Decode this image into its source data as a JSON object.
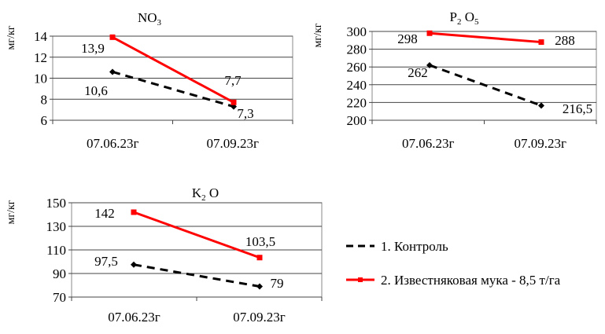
{
  "chart_data": [
    {
      "type": "line",
      "title": "NO3",
      "title_main": "NO",
      "title_sub": "3",
      "ylabel": "мг/кг",
      "categories": [
        "07.06.23г",
        "07.09.23г"
      ],
      "ylim": [
        6,
        14
      ],
      "yticks": [
        6,
        8,
        10,
        12,
        14
      ],
      "grid": true,
      "series": [
        {
          "name": "1. Контроль",
          "values": [
            10.6,
            7.3
          ],
          "labels": [
            "10,6",
            "7,3"
          ]
        },
        {
          "name": "2. Известняковая мука - 8,5 т/га",
          "values": [
            13.9,
            7.7
          ],
          "labels": [
            "13,9",
            "7,7"
          ]
        }
      ]
    },
    {
      "type": "line",
      "title": "P2 O5",
      "title_main": "P",
      "title_sub": "2",
      "title_main2": " O",
      "title_sub2": "5",
      "ylabel": "мг/кг",
      "categories": [
        "07.06.23г",
        "07.09.23г"
      ],
      "ylim": [
        200,
        300
      ],
      "yticks": [
        200,
        220,
        240,
        260,
        280,
        300
      ],
      "grid": true,
      "series": [
        {
          "name": "1. Контроль",
          "values": [
            262,
            216.5
          ],
          "labels": [
            "262",
            "216,5"
          ]
        },
        {
          "name": "2. Известняковая мука - 8,5 т/га",
          "values": [
            298,
            288
          ],
          "labels": [
            "298",
            "288"
          ]
        }
      ]
    },
    {
      "type": "line",
      "title": "K2 O",
      "title_main": "K",
      "title_sub": "2",
      "title_main2": " O",
      "ylabel": "мг/кг",
      "categories": [
        "07.06.23г",
        "07.09.23г"
      ],
      "ylim": [
        70,
        150
      ],
      "yticks": [
        70,
        90,
        110,
        130,
        150
      ],
      "grid": true,
      "series": [
        {
          "name": "1. Контроль",
          "values": [
            97.5,
            79
          ],
          "labels": [
            "97,5",
            "79"
          ]
        },
        {
          "name": "2. Известняковая мука - 8,5 т/га",
          "values": [
            142,
            103.5
          ],
          "labels": [
            "142",
            "103,5"
          ]
        }
      ]
    }
  ],
  "legend": {
    "placement": "right",
    "items": [
      {
        "label": "1. Контроль",
        "color": "#000000",
        "style": "dashed"
      },
      {
        "label": "2. Известняковая мука - 8,5 т/га",
        "color": "#ff0000",
        "style": "solid"
      }
    ]
  }
}
